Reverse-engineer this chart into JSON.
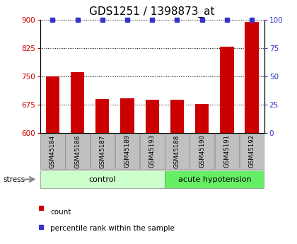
{
  "title": "GDS1251 / 1398873_at",
  "categories": [
    "GSM45184",
    "GSM45186",
    "GSM45187",
    "GSM45189",
    "GSM45193",
    "GSM45188",
    "GSM45190",
    "GSM45191",
    "GSM45192"
  ],
  "bar_values": [
    750,
    760,
    690,
    692,
    688,
    688,
    677,
    828,
    893
  ],
  "percentile_values": [
    100,
    100,
    100,
    100,
    100,
    100,
    100,
    100,
    100
  ],
  "bar_color": "#cc0000",
  "dot_color": "#3333cc",
  "ylim_left": [
    600,
    900
  ],
  "ylim_right": [
    0,
    100
  ],
  "yticks_left": [
    600,
    675,
    750,
    825,
    900
  ],
  "yticks_right": [
    0,
    25,
    50,
    75,
    100
  ],
  "grid_values": [
    675,
    750,
    825,
    900
  ],
  "group1_label": "control",
  "group2_label": "acute hypotension",
  "group1_indices": [
    0,
    1,
    2,
    3,
    4
  ],
  "group2_indices": [
    5,
    6,
    7,
    8
  ],
  "stress_label": "stress",
  "legend_count": "count",
  "legend_percentile": "percentile rank within the sample",
  "bar_width": 0.55,
  "group1_color_light": "#ccffcc",
  "group2_color_dark": "#66ee66",
  "xlabel_area_color": "#c0c0c0",
  "title_fontsize": 11,
  "tick_fontsize": 7.5,
  "background_color": "#ffffff"
}
